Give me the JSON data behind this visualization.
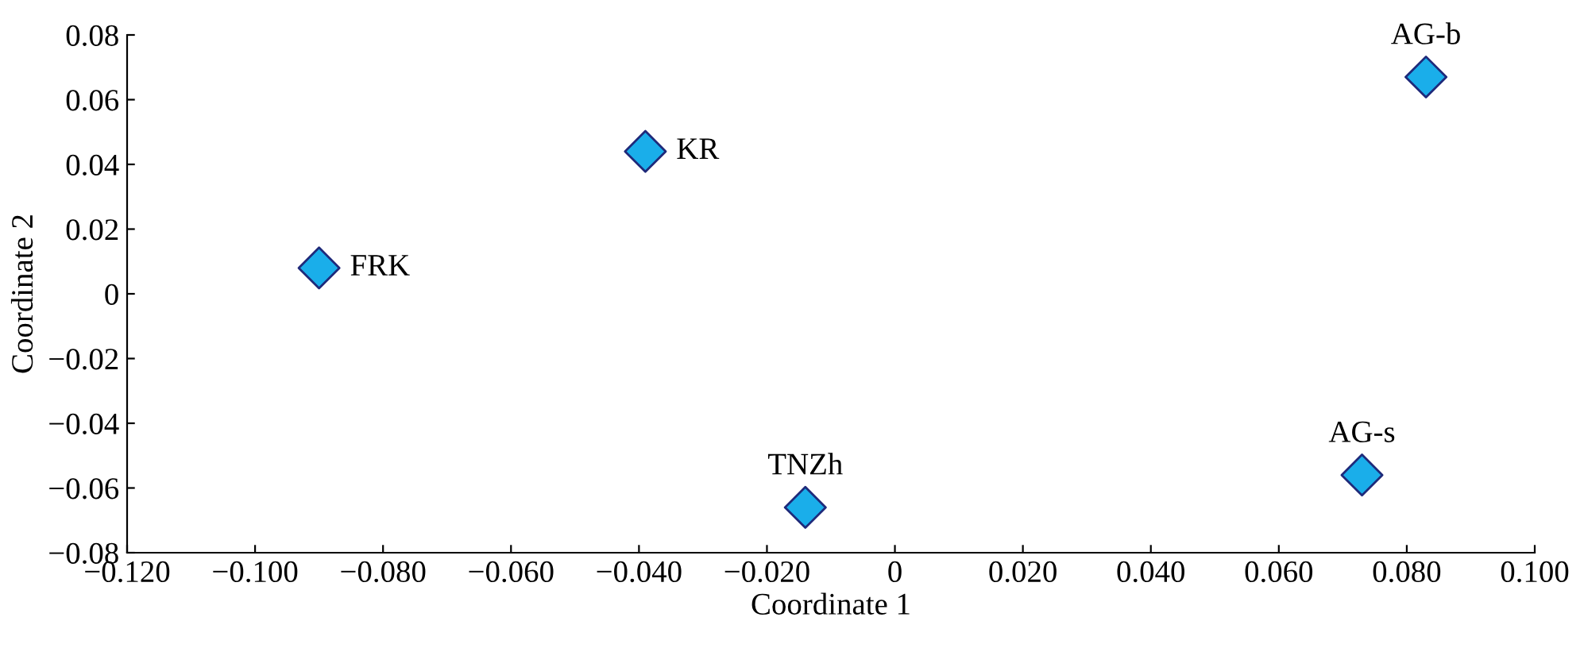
{
  "chart_data": {
    "type": "scatter",
    "xlabel": "Coordinate 1",
    "ylabel": "Coordinate 2",
    "x": [
      -0.09,
      -0.039,
      0.083,
      -0.014,
      0.073
    ],
    "values": [
      0.008,
      0.044,
      0.067,
      -0.066,
      -0.056
    ],
    "color": "#1aaeea",
    "marker": "diamond",
    "grid": false,
    "xlim": [
      -0.12,
      0.1
    ],
    "ylim": [
      -0.08,
      0.08
    ],
    "xticks": [
      {
        "value": -0.12,
        "label": "−0.120"
      },
      {
        "value": -0.1,
        "label": "−0.100"
      },
      {
        "value": -0.08,
        "label": "−0.080"
      },
      {
        "value": -0.06,
        "label": "−0.060"
      },
      {
        "value": -0.04,
        "label": "−0.040"
      },
      {
        "value": -0.02,
        "label": "−0.020"
      },
      0,
      {
        "value": 0.02,
        "label": "0.020"
      },
      {
        "value": 0.04,
        "label": "0.040"
      },
      {
        "value": 0.06,
        "label": "0.060"
      },
      {
        "value": 0.08,
        "label": "0.080"
      },
      {
        "value": 0.1,
        "label": "0.100"
      }
    ],
    "yticks": [
      {
        "value": -0.08,
        "label": "−0.08"
      },
      {
        "value": -0.06,
        "label": "−0.06"
      },
      {
        "value": -0.04,
        "label": "−0.04"
      },
      {
        "value": -0.02,
        "label": "−0.02"
      },
      0,
      {
        "value": 0.02,
        "label": "0.02"
      },
      {
        "value": 0.04,
        "label": "0.04"
      },
      {
        "value": 0.06,
        "label": "0.06"
      },
      {
        "value": 0.08,
        "label": "0.08"
      }
    ],
    "annotations": [
      {
        "text": "FRK",
        "x": -0.09,
        "y": 0.008
      },
      {
        "text": "KR",
        "x": -0.039,
        "y": 0.044
      },
      {
        "text": "AG-b",
        "x": 0.083,
        "y": 0.067
      },
      {
        "text": "TNZh",
        "x": -0.014,
        "y": -0.066
      },
      {
        "text": "AG-s",
        "x": 0.073,
        "y": -0.056
      }
    ]
  }
}
